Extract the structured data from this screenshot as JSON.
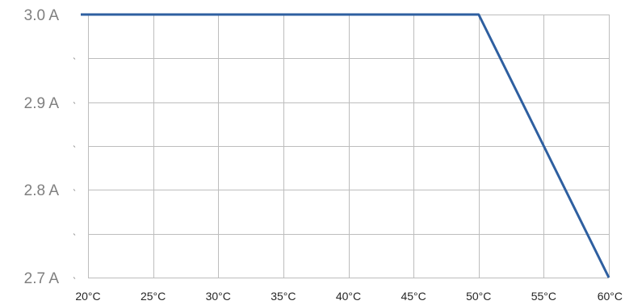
{
  "chart_data": {
    "type": "line",
    "x": [
      20,
      25,
      30,
      35,
      40,
      45,
      50,
      55,
      60
    ],
    "x_tick_labels": [
      "20°C",
      "25°C",
      "30°C",
      "35°C",
      "40°C",
      "45°C",
      "50°C",
      "55°C",
      "60°C"
    ],
    "xlim": [
      20,
      60
    ],
    "series": [
      {
        "values": [
          3.0,
          3.0,
          3.0,
          3.0,
          3.0,
          3.0,
          3.0,
          2.85,
          2.7
        ],
        "color": "#2e5fa0"
      }
    ],
    "ylim": [
      2.7,
      3.0
    ],
    "y_ticks": [
      3.0,
      2.9,
      2.8,
      2.7
    ],
    "y_tick_labels": [
      "3.0 A",
      "2.9 A",
      "2.8 A",
      "2.7 A"
    ],
    "y_minor_ticks": [
      2.95,
      2.85,
      2.75
    ],
    "grid": true,
    "legend": "none",
    "title": "",
    "xlabel": "",
    "ylabel": ""
  }
}
